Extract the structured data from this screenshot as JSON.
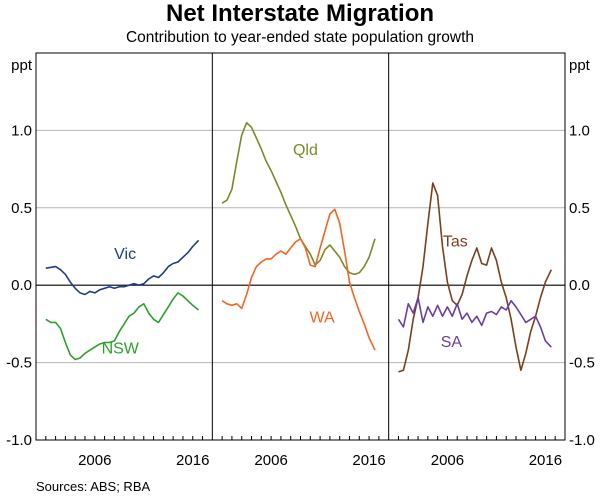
{
  "chart_data": {
    "type": "line",
    "title": "Net Interstate Migration",
    "subtitle": "Contribution to year-ended state population growth",
    "ylabel": "ppt",
    "ylim": [
      -1.0,
      1.5
    ],
    "yticks": [
      {
        "value": 1.0,
        "label": "1.0"
      },
      {
        "value": 0.5,
        "label": "0.5"
      },
      {
        "value": 0.0,
        "label": "0.0"
      },
      {
        "value": -0.5,
        "label": "-0.5"
      },
      {
        "value": -1.0,
        "label": "-1.0"
      }
    ],
    "xlim": [
      2000,
      2018
    ],
    "xtick_labels": [
      "2006",
      "2016"
    ],
    "source": "Sources: ABS; RBA",
    "panels": [
      {
        "series": [
          {
            "name": "Vic",
            "color": "#1f3c88",
            "points": [
              [
                2001,
                0.11
              ],
              [
                2002,
                0.12
              ],
              [
                2002.5,
                0.1
              ],
              [
                2003,
                0.07
              ],
              [
                2003.5,
                0.02
              ],
              [
                2004,
                -0.02
              ],
              [
                2004.5,
                -0.05
              ],
              [
                2005,
                -0.06
              ],
              [
                2005.5,
                -0.04
              ],
              [
                2006,
                -0.05
              ],
              [
                2006.5,
                -0.03
              ],
              [
                2007,
                -0.02
              ],
              [
                2007.5,
                -0.01
              ],
              [
                2008,
                -0.02
              ],
              [
                2008.5,
                -0.01
              ],
              [
                2009,
                -0.01
              ],
              [
                2009.5,
                0.0
              ],
              [
                2010,
                0.01
              ],
              [
                2010.5,
                0.0
              ],
              [
                2011,
                0.01
              ],
              [
                2011.5,
                0.04
              ],
              [
                2012,
                0.06
              ],
              [
                2012.5,
                0.05
              ],
              [
                2013,
                0.08
              ],
              [
                2013.5,
                0.12
              ],
              [
                2014,
                0.14
              ],
              [
                2014.5,
                0.15
              ],
              [
                2015,
                0.18
              ],
              [
                2015.5,
                0.21
              ],
              [
                2016,
                0.25
              ],
              [
                2016.6,
                0.29
              ]
            ]
          },
          {
            "name": "NSW",
            "color": "#2ca02c",
            "points": [
              [
                2001,
                -0.22
              ],
              [
                2001.5,
                -0.24
              ],
              [
                2002,
                -0.24
              ],
              [
                2002.5,
                -0.28
              ],
              [
                2003,
                -0.37
              ],
              [
                2003.5,
                -0.45
              ],
              [
                2004,
                -0.48
              ],
              [
                2004.5,
                -0.47
              ],
              [
                2005,
                -0.44
              ],
              [
                2005.5,
                -0.42
              ],
              [
                2006,
                -0.4
              ],
              [
                2006.5,
                -0.38
              ],
              [
                2007,
                -0.37
              ],
              [
                2007.5,
                -0.37
              ],
              [
                2008,
                -0.36
              ],
              [
                2008.5,
                -0.3
              ],
              [
                2009,
                -0.25
              ],
              [
                2009.5,
                -0.2
              ],
              [
                2010,
                -0.18
              ],
              [
                2010.5,
                -0.14
              ],
              [
                2011,
                -0.12
              ],
              [
                2011.5,
                -0.18
              ],
              [
                2012,
                -0.22
              ],
              [
                2012.5,
                -0.24
              ],
              [
                2013,
                -0.19
              ],
              [
                2013.5,
                -0.14
              ],
              [
                2014,
                -0.09
              ],
              [
                2014.5,
                -0.05
              ],
              [
                2015,
                -0.07
              ],
              [
                2015.5,
                -0.1
              ],
              [
                2016,
                -0.13
              ],
              [
                2016.6,
                -0.16
              ]
            ]
          }
        ],
        "labels": [
          {
            "text": "Vic",
            "x": 2009.1,
            "y": 0.17,
            "color": "#1f3c88"
          },
          {
            "text": "NSW",
            "x": 2008.6,
            "y": -0.44,
            "color": "#2ca02c"
          }
        ]
      },
      {
        "series": [
          {
            "name": "Qld",
            "color": "#7a8a2a",
            "points": [
              [
                2001,
                0.53
              ],
              [
                2001.5,
                0.55
              ],
              [
                2002,
                0.62
              ],
              [
                2002.5,
                0.8
              ],
              [
                2003,
                0.97
              ],
              [
                2003.5,
                1.05
              ],
              [
                2004,
                1.02
              ],
              [
                2004.5,
                0.95
              ],
              [
                2005,
                0.88
              ],
              [
                2005.5,
                0.8
              ],
              [
                2006,
                0.74
              ],
              [
                2006.5,
                0.67
              ],
              [
                2007,
                0.6
              ],
              [
                2007.5,
                0.52
              ],
              [
                2008,
                0.45
              ],
              [
                2008.5,
                0.38
              ],
              [
                2009,
                0.3
              ],
              [
                2009.5,
                0.25
              ],
              [
                2010,
                0.2
              ],
              [
                2010.5,
                0.13
              ],
              [
                2011,
                0.16
              ],
              [
                2011.5,
                0.23
              ],
              [
                2012,
                0.26
              ],
              [
                2012.5,
                0.22
              ],
              [
                2013,
                0.18
              ],
              [
                2013.5,
                0.12
              ],
              [
                2014,
                0.08
              ],
              [
                2014.5,
                0.07
              ],
              [
                2015,
                0.08
              ],
              [
                2015.5,
                0.12
              ],
              [
                2016,
                0.18
              ],
              [
                2016.6,
                0.3
              ]
            ]
          },
          {
            "name": "WA",
            "color": "#f26522",
            "points": [
              [
                2001,
                -0.1
              ],
              [
                2001.5,
                -0.12
              ],
              [
                2002,
                -0.13
              ],
              [
                2002.5,
                -0.12
              ],
              [
                2003,
                -0.15
              ],
              [
                2003.5,
                -0.06
              ],
              [
                2004,
                0.05
              ],
              [
                2004.5,
                0.12
              ],
              [
                2005,
                0.15
              ],
              [
                2005.5,
                0.17
              ],
              [
                2006,
                0.17
              ],
              [
                2006.5,
                0.2
              ],
              [
                2007,
                0.22
              ],
              [
                2007.5,
                0.2
              ],
              [
                2008,
                0.24
              ],
              [
                2008.5,
                0.28
              ],
              [
                2009,
                0.3
              ],
              [
                2009.5,
                0.24
              ],
              [
                2010,
                0.13
              ],
              [
                2010.5,
                0.12
              ],
              [
                2011,
                0.24
              ],
              [
                2011.5,
                0.35
              ],
              [
                2012,
                0.46
              ],
              [
                2012.5,
                0.49
              ],
              [
                2013,
                0.4
              ],
              [
                2013.5,
                0.22
              ],
              [
                2014,
                0.02
              ],
              [
                2014.5,
                -0.08
              ],
              [
                2015,
                -0.17
              ],
              [
                2015.5,
                -0.25
              ],
              [
                2016,
                -0.34
              ],
              [
                2016.6,
                -0.42
              ]
            ]
          }
        ],
        "labels": [
          {
            "text": "Qld",
            "x": 2009.5,
            "y": 0.84,
            "color": "#7a8a2a"
          },
          {
            "text": "WA",
            "x": 2011.2,
            "y": -0.24,
            "color": "#f26522"
          }
        ]
      },
      {
        "series": [
          {
            "name": "Tas",
            "color": "#7b3f1d",
            "points": [
              [
                2001,
                -0.56
              ],
              [
                2001.5,
                -0.55
              ],
              [
                2002,
                -0.42
              ],
              [
                2002.5,
                -0.22
              ],
              [
                2003,
                -0.08
              ],
              [
                2003.5,
                0.12
              ],
              [
                2004,
                0.4
              ],
              [
                2004.5,
                0.66
              ],
              [
                2005,
                0.58
              ],
              [
                2005.5,
                0.25
              ],
              [
                2006,
                0.02
              ],
              [
                2006.5,
                -0.1
              ],
              [
                2007,
                -0.13
              ],
              [
                2007.5,
                -0.06
              ],
              [
                2008,
                0.06
              ],
              [
                2008.5,
                0.16
              ],
              [
                2009,
                0.24
              ],
              [
                2009.5,
                0.14
              ],
              [
                2010,
                0.13
              ],
              [
                2010.5,
                0.24
              ],
              [
                2011,
                0.16
              ],
              [
                2011.5,
                0.02
              ],
              [
                2012,
                -0.08
              ],
              [
                2012.5,
                -0.22
              ],
              [
                2013,
                -0.4
              ],
              [
                2013.5,
                -0.55
              ],
              [
                2014,
                -0.44
              ],
              [
                2014.5,
                -0.3
              ],
              [
                2015,
                -0.2
              ],
              [
                2015.5,
                -0.08
              ],
              [
                2016,
                0.02
              ],
              [
                2016.6,
                0.1
              ]
            ]
          },
          {
            "name": "SA",
            "color": "#6a3fa0",
            "points": [
              [
                2001,
                -0.22
              ],
              [
                2001.5,
                -0.27
              ],
              [
                2002,
                -0.12
              ],
              [
                2002.5,
                -0.18
              ],
              [
                2003,
                -0.08
              ],
              [
                2003.5,
                -0.24
              ],
              [
                2004,
                -0.14
              ],
              [
                2004.5,
                -0.2
              ],
              [
                2005,
                -0.13
              ],
              [
                2005.5,
                -0.2
              ],
              [
                2006,
                -0.14
              ],
              [
                2006.5,
                -0.2
              ],
              [
                2007,
                -0.12
              ],
              [
                2007.5,
                -0.22
              ],
              [
                2008,
                -0.18
              ],
              [
                2008.5,
                -0.24
              ],
              [
                2009,
                -0.2
              ],
              [
                2009.5,
                -0.26
              ],
              [
                2010,
                -0.18
              ],
              [
                2010.5,
                -0.17
              ],
              [
                2011,
                -0.19
              ],
              [
                2011.5,
                -0.14
              ],
              [
                2012,
                -0.16
              ],
              [
                2012.5,
                -0.1
              ],
              [
                2013,
                -0.14
              ],
              [
                2013.5,
                -0.19
              ],
              [
                2014,
                -0.24
              ],
              [
                2014.5,
                -0.22
              ],
              [
                2015,
                -0.2
              ],
              [
                2015.5,
                -0.27
              ],
              [
                2016,
                -0.36
              ],
              [
                2016.6,
                -0.4
              ]
            ]
          }
        ],
        "labels": [
          {
            "text": "Tas",
            "x": 2006.8,
            "y": 0.25,
            "color": "#7b3f1d"
          },
          {
            "text": "SA",
            "x": 2006.4,
            "y": -0.4,
            "color": "#6a3fa0"
          }
        ]
      }
    ]
  }
}
